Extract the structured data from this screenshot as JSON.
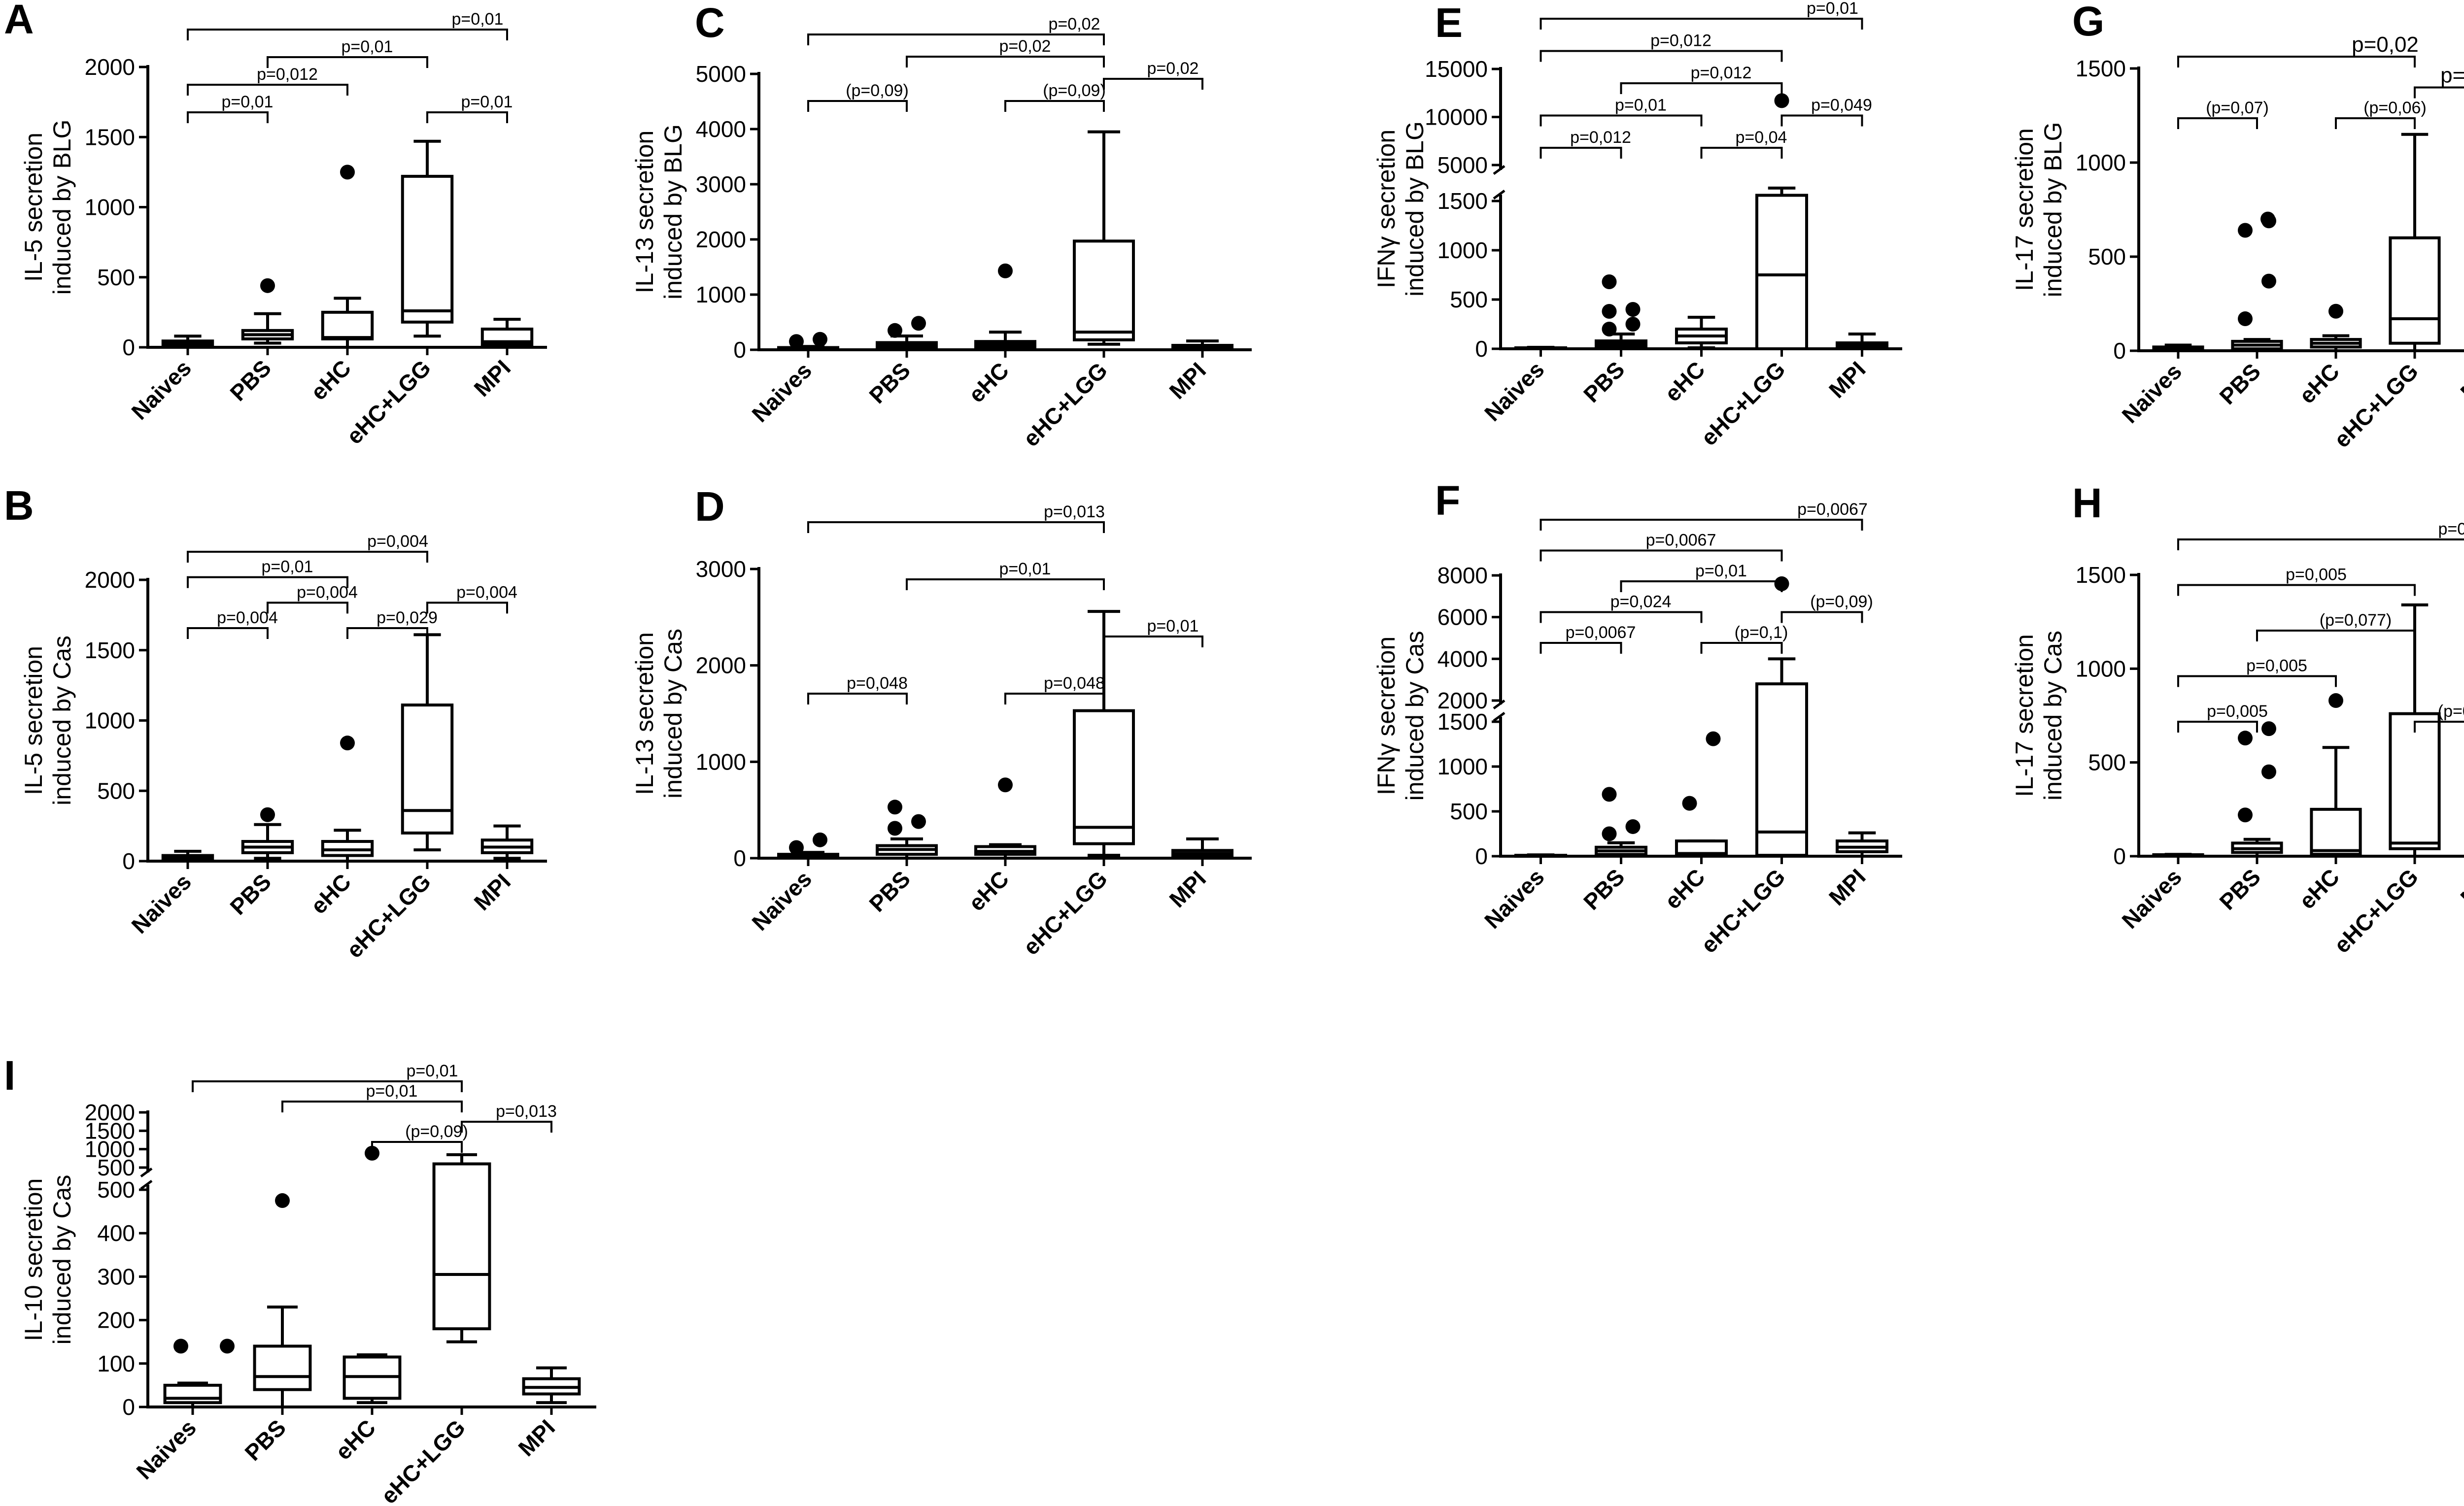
{
  "chart_data": [
    {
      "panel": "A",
      "type": "box",
      "ylabel": [
        "IL-5 secretion",
        "induced by BLG"
      ],
      "categories": [
        "Naives",
        "PBS",
        "eHC",
        "eHC+LGG",
        "MPI"
      ],
      "yticks": [
        "0",
        "500",
        "1000",
        "1500",
        "2000"
      ],
      "ylim": [
        0,
        2000
      ],
      "boxes": [
        {
          "whislo": 0,
          "q1": 10,
          "med": 30,
          "q3": 45,
          "whishi": 80,
          "fliers": []
        },
        {
          "whislo": 30,
          "q1": 60,
          "med": 90,
          "q3": 120,
          "whishi": 240,
          "fliers": [
            440
          ]
        },
        {
          "whislo": 0,
          "q1": 60,
          "med": 70,
          "q3": 250,
          "whishi": 350,
          "fliers": [
            1250
          ]
        },
        {
          "whislo": 80,
          "q1": 180,
          "med": 260,
          "q3": 1220,
          "whishi": 1470,
          "fliers": []
        },
        {
          "whislo": 0,
          "q1": 20,
          "med": 40,
          "q3": 130,
          "whishi": 200,
          "fliers": []
        }
      ],
      "brackets": [
        {
          "from": 0,
          "to": 1,
          "label": "p=0,01"
        },
        {
          "from": 0,
          "to": 2,
          "label": "p=0,012"
        },
        {
          "from": 0,
          "to": 4,
          "label": "p=0,01"
        },
        {
          "from": 1,
          "to": 3,
          "label": "p=0,01"
        },
        {
          "from": 3,
          "to": 4,
          "label": "p=0,01"
        }
      ]
    },
    {
      "panel": "B",
      "type": "box",
      "ylabel": [
        "IL-5 secretion",
        "induced by Cas"
      ],
      "categories": [
        "Naives",
        "PBS",
        "eHC",
        "eHC+LGG",
        "MPI"
      ],
      "yticks": [
        "0",
        "500",
        "1000",
        "1500",
        "2000"
      ],
      "ylim": [
        0,
        2000
      ],
      "boxes": [
        {
          "whislo": 0,
          "q1": 10,
          "med": 25,
          "q3": 40,
          "whishi": 70,
          "fliers": []
        },
        {
          "whislo": 20,
          "q1": 60,
          "med": 100,
          "q3": 140,
          "whishi": 260,
          "fliers": [
            330
          ]
        },
        {
          "whislo": 0,
          "q1": 40,
          "med": 80,
          "q3": 140,
          "whishi": 220,
          "fliers": [
            840
          ]
        },
        {
          "whislo": 80,
          "q1": 200,
          "med": 360,
          "q3": 1110,
          "whishi": 1610,
          "fliers": []
        },
        {
          "whislo": 20,
          "q1": 60,
          "med": 100,
          "q3": 150,
          "whishi": 250,
          "fliers": []
        }
      ],
      "brackets": [
        {
          "from": 0,
          "to": 1,
          "label": "p=0,004"
        },
        {
          "from": 0,
          "to": 2,
          "label": "p=0,01"
        },
        {
          "from": 0,
          "to": 3,
          "label": "p=0,004"
        },
        {
          "from": 1,
          "to": 2,
          "label": "p=0,004"
        },
        {
          "from": 2,
          "to": 3,
          "label": "p=0,029"
        },
        {
          "from": 3,
          "to": 4,
          "label": "p=0,004"
        }
      ]
    },
    {
      "panel": "C",
      "type": "box",
      "ylabel": [
        "IL-13 secretion",
        "induced by BLG"
      ],
      "categories": [
        "Naives",
        "PBS",
        "eHC",
        "eHC+LGG",
        "MPI"
      ],
      "yticks": [
        "0",
        "1000",
        "2000",
        "3000",
        "4000",
        "5000"
      ],
      "ylim": [
        0,
        5000
      ],
      "boxes": [
        {
          "whislo": 0,
          "q1": 10,
          "med": 20,
          "q3": 40,
          "whishi": 60,
          "fliers": [
            150,
            190
          ]
        },
        {
          "whislo": 0,
          "q1": 40,
          "med": 80,
          "q3": 130,
          "whishi": 250,
          "fliers": [
            350,
            480
          ]
        },
        {
          "whislo": 0,
          "q1": 50,
          "med": 100,
          "q3": 150,
          "whishi": 320,
          "fliers": [
            1430
          ]
        },
        {
          "whislo": 100,
          "q1": 180,
          "med": 320,
          "q3": 1970,
          "whishi": 3950,
          "fliers": []
        },
        {
          "whislo": 0,
          "q1": 20,
          "med": 50,
          "q3": 80,
          "whishi": 160,
          "fliers": []
        }
      ],
      "brackets": [
        {
          "from": 0,
          "to": 1,
          "label": "(p=0,09)"
        },
        {
          "from": 0,
          "to": 3,
          "label": "p=0,02"
        },
        {
          "from": 1,
          "to": 3,
          "label": "p=0,02"
        },
        {
          "from": 2,
          "to": 3,
          "label": "(p=0,09)"
        },
        {
          "from": 3,
          "to": 4,
          "label": "p=0,02"
        }
      ]
    },
    {
      "panel": "D",
      "type": "box",
      "ylabel": [
        "IL-13 secretion",
        "induced by Cas"
      ],
      "categories": [
        "Naives",
        "PBS",
        "eHC",
        "eHC+LGG",
        "MPI"
      ],
      "yticks": [
        "0",
        "1000",
        "2000",
        "3000"
      ],
      "ylim": [
        0,
        3000
      ],
      "boxes": [
        {
          "whislo": 0,
          "q1": 10,
          "med": 20,
          "q3": 40,
          "whishi": 60,
          "fliers": [
            110,
            190
          ]
        },
        {
          "whislo": 0,
          "q1": 40,
          "med": 90,
          "q3": 130,
          "whishi": 200,
          "fliers": [
            310,
            380,
            530
          ]
        },
        {
          "whislo": 0,
          "q1": 40,
          "med": 70,
          "q3": 120,
          "whishi": 140,
          "fliers": [
            760
          ]
        },
        {
          "whislo": 30,
          "q1": 150,
          "med": 320,
          "q3": 1530,
          "whishi": 2560,
          "fliers": []
        },
        {
          "whislo": 0,
          "q1": 30,
          "med": 50,
          "q3": 80,
          "whishi": 200,
          "fliers": []
        }
      ],
      "brackets": [
        {
          "from": 0,
          "to": 1,
          "label": "p=0,048"
        },
        {
          "from": 0,
          "to": 3,
          "label": "p=0,013"
        },
        {
          "from": 1,
          "to": 3,
          "label": "p=0,01"
        },
        {
          "from": 2,
          "to": 3,
          "label": "p=0,048"
        },
        {
          "from": 3,
          "to": 4,
          "label": "p=0,01"
        }
      ]
    },
    {
      "panel": "E",
      "type": "box",
      "ylabel": [
        "IFNγ secretion",
        "induced by BLG"
      ],
      "categories": [
        "Naives",
        "PBS",
        "eHC",
        "eHC+LGG",
        "MPI"
      ],
      "axis_break": {
        "upper_ticks": [
          "5000",
          "10000",
          "15000"
        ],
        "lower_ticks": [
          "0",
          "500",
          "1000",
          "1500"
        ]
      },
      "yticks": [
        "0",
        "500",
        "1000",
        "1500",
        "5000",
        "10000",
        "15000"
      ],
      "boxes": [
        {
          "whislo": 0,
          "q1": 0,
          "med": 5,
          "q3": 10,
          "whishi": 15,
          "fliers": []
        },
        {
          "whislo": 0,
          "q1": 20,
          "med": 50,
          "q3": 80,
          "whishi": 150,
          "fliers": [
            200,
            250,
            380,
            400,
            680
          ]
        },
        {
          "whislo": 10,
          "q1": 60,
          "med": 130,
          "q3": 200,
          "whishi": 320,
          "fliers": []
        },
        {
          "whislo": 0,
          "q1": 0,
          "med": 750,
          "q3": 1850,
          "whishi": 2600,
          "fliers": [
            11700
          ]
        },
        {
          "whislo": 0,
          "q1": 10,
          "med": 30,
          "q3": 60,
          "whishi": 150,
          "fliers": []
        }
      ],
      "brackets": [
        {
          "from": 0,
          "to": 1,
          "label": "p=0,012"
        },
        {
          "from": 0,
          "to": 2,
          "label": "p=0,01"
        },
        {
          "from": 0,
          "to": 3,
          "label": "p=0,012"
        },
        {
          "from": 0,
          "to": 4,
          "label": "p=0,01"
        },
        {
          "from": 1,
          "to": 3,
          "label": "p=0,012"
        },
        {
          "from": 2,
          "to": 3,
          "label": "p=0,04"
        },
        {
          "from": 3,
          "to": 4,
          "label": "p=0,049"
        }
      ]
    },
    {
      "panel": "F",
      "type": "box",
      "ylabel": [
        "IFNγ secretion",
        "induced by Cas"
      ],
      "categories": [
        "Naives",
        "PBS",
        "eHC",
        "eHC+LGG",
        "MPI"
      ],
      "axis_break": {
        "upper_ticks": [
          "2000",
          "4000",
          "6000",
          "8000"
        ],
        "lower_ticks": [
          "0",
          "500",
          "1000",
          "1500"
        ]
      },
      "yticks": [
        "0",
        "500",
        "1000",
        "1500",
        "2000",
        "4000",
        "6000",
        "8000"
      ],
      "boxes": [
        {
          "whislo": 0,
          "q1": 0,
          "med": 5,
          "q3": 10,
          "whishi": 15,
          "fliers": []
        },
        {
          "whislo": 0,
          "q1": 20,
          "med": 60,
          "q3": 100,
          "whishi": 150,
          "fliers": [
            250,
            330,
            690
          ]
        },
        {
          "whislo": 0,
          "q1": 0,
          "med": 30,
          "q3": 170,
          "whishi": 170,
          "fliers": [
            590,
            1310
          ]
        },
        {
          "whislo": 0,
          "q1": 10,
          "med": 270,
          "q3": 2800,
          "whishi": 4000,
          "fliers": [
            7600
          ]
        },
        {
          "whislo": 0,
          "q1": 50,
          "med": 100,
          "q3": 170,
          "whishi": 260,
          "fliers": []
        }
      ],
      "brackets": [
        {
          "from": 0,
          "to": 1,
          "label": "p=0,0067"
        },
        {
          "from": 0,
          "to": 2,
          "label": "p=0,024"
        },
        {
          "from": 0,
          "to": 3,
          "label": "p=0,0067"
        },
        {
          "from": 0,
          "to": 4,
          "label": "p=0,0067"
        },
        {
          "from": 1,
          "to": 3,
          "label": "p=0,01"
        },
        {
          "from": 2,
          "to": 3,
          "label": "(p=0,1)"
        },
        {
          "from": 3,
          "to": 4,
          "label": "(p=0,09)"
        }
      ]
    },
    {
      "panel": "G",
      "type": "box",
      "ylabel": [
        "IL-17 secretion",
        "induced by BLG"
      ],
      "categories": [
        "Naives",
        "PBS",
        "eHC",
        "eHC+LGG",
        "MPI"
      ],
      "yticks": [
        "0",
        "500",
        "1000",
        "1500"
      ],
      "ylim": [
        0,
        1500
      ],
      "boxes": [
        {
          "whislo": 0,
          "q1": 5,
          "med": 10,
          "q3": 20,
          "whishi": 30,
          "fliers": []
        },
        {
          "whislo": 0,
          "q1": 10,
          "med": 30,
          "q3": 50,
          "whishi": 60,
          "fliers": [
            170,
            370,
            640,
            690,
            700
          ]
        },
        {
          "whislo": 0,
          "q1": 20,
          "med": 40,
          "q3": 60,
          "whishi": 80,
          "fliers": [
            210
          ]
        },
        {
          "whislo": 0,
          "q1": 40,
          "med": 170,
          "q3": 600,
          "whishi": 1150,
          "fliers": []
        },
        {
          "whislo": 0,
          "q1": 20,
          "med": 40,
          "q3": 60,
          "whishi": 70,
          "fliers": []
        }
      ],
      "brackets": [
        {
          "from": 0,
          "to": 1,
          "label": "(p=0,07)"
        },
        {
          "from": 0,
          "to": 3,
          "label": "p=0,02"
        },
        {
          "from": 2,
          "to": 3,
          "label": "(p=0,06)"
        },
        {
          "from": 3,
          "to": 4,
          "label": "p=0,04"
        }
      ]
    },
    {
      "panel": "H",
      "type": "box",
      "ylabel": [
        "IL-17 secretion",
        "induced by Cas"
      ],
      "categories": [
        "Naives",
        "PBS",
        "eHC",
        "eHC+LGG",
        "MPI"
      ],
      "yticks": [
        "0",
        "500",
        "1000",
        "1500"
      ],
      "ylim": [
        0,
        1500
      ],
      "boxes": [
        {
          "whislo": 0,
          "q1": 2,
          "med": 5,
          "q3": 8,
          "whishi": 10,
          "fliers": []
        },
        {
          "whislo": 0,
          "q1": 20,
          "med": 40,
          "q3": 70,
          "whishi": 90,
          "fliers": [
            220,
            450,
            630,
            680
          ]
        },
        {
          "whislo": 0,
          "q1": 10,
          "med": 30,
          "q3": 250,
          "whishi": 580,
          "fliers": [
            830
          ]
        },
        {
          "whislo": 0,
          "q1": 40,
          "med": 70,
          "q3": 760,
          "whishi": 1340,
          "fliers": []
        },
        {
          "whislo": 0,
          "q1": 10,
          "med": 20,
          "q3": 30,
          "whishi": 40,
          "fliers": [
            100
          ]
        }
      ],
      "brackets": [
        {
          "from": 0,
          "to": 1,
          "label": "p=0,005"
        },
        {
          "from": 0,
          "to": 2,
          "label": "p=0,005"
        },
        {
          "from": 0,
          "to": 3,
          "label": "p=0,005"
        },
        {
          "from": 0,
          "to": 4,
          "label": "p=0,05"
        },
        {
          "from": 1,
          "to": 3,
          "label": "(p=0,077)"
        },
        {
          "from": 3,
          "to": 4,
          "label": "(p=0,077)"
        }
      ]
    },
    {
      "panel": "I",
      "type": "box",
      "ylabel": [
        "IL-10 secretion",
        "induced by Cas"
      ],
      "categories": [
        "Naives",
        "PBS",
        "eHC",
        "eHC+LGG",
        "MPI"
      ],
      "axis_break": {
        "upper_ticks": [
          "1000",
          "1500",
          "2000"
        ],
        "lower_ticks": [
          "0",
          "100",
          "200",
          "300",
          "400",
          "500"
        ]
      },
      "yticks": [
        "0",
        "100",
        "200",
        "300",
        "400",
        "500",
        "1000",
        "1500",
        "2000"
      ],
      "boxes": [
        {
          "whislo": 0,
          "q1": 10,
          "med": 20,
          "q3": 50,
          "whishi": 55,
          "fliers": [
            140,
            140
          ]
        },
        {
          "whislo": 0,
          "q1": 40,
          "med": 70,
          "q3": 140,
          "whishi": 230,
          "fliers": [
            475
          ]
        },
        {
          "whislo": 10,
          "q1": 20,
          "med": 70,
          "q3": 115,
          "whishi": 120,
          "fliers": [
            890
          ]
        },
        {
          "whislo": 150,
          "q1": 180,
          "med": 305,
          "q3": 600,
          "whishi": 850,
          "fliers": []
        },
        {
          "whislo": 10,
          "q1": 30,
          "med": 45,
          "q3": 65,
          "whishi": 90,
          "fliers": []
        }
      ],
      "brackets": [
        {
          "from": 0,
          "to": 3,
          "label": "p=0,01"
        },
        {
          "from": 1,
          "to": 3,
          "label": "p=0,01"
        },
        {
          "from": 2,
          "to": 3,
          "label": "(p=0,09)"
        },
        {
          "from": 3,
          "to": 4,
          "label": "p=0,013"
        }
      ]
    }
  ]
}
